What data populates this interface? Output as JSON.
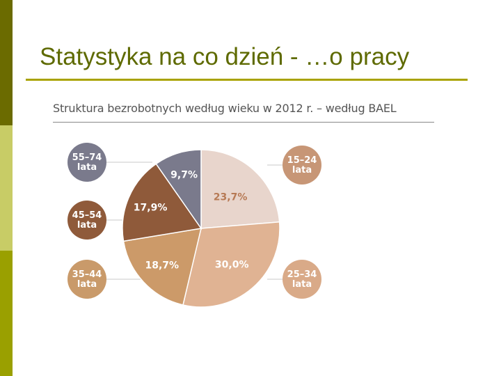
{
  "slide": {
    "title": "Statystyka na co dzień - …o pracy",
    "accent_bar_colors": [
      "#6b6b00",
      "#c8cc66",
      "#9aa000"
    ]
  },
  "chart_data": {
    "type": "pie",
    "title": "Struktura bezrobotnych według wieku w 2012 r. – według BAEL",
    "slices": [
      {
        "label": [
          "15–24",
          "lata"
        ],
        "value": 23.7,
        "value_label": "23,7%",
        "color": "#e8d5cc",
        "label_color": "#c79676",
        "text_color": "#b77a55"
      },
      {
        "label": [
          "25–34",
          "lata"
        ],
        "value": 30.0,
        "value_label": "30,0%",
        "color": "#e0b393",
        "label_color": "#d9aa88",
        "text_color": "#ffffff"
      },
      {
        "label": [
          "35–44",
          "lata"
        ],
        "value": 18.7,
        "value_label": "18,7%",
        "color": "#cc9a69",
        "label_color": "#c99a6a",
        "text_color": "#ffffff"
      },
      {
        "label": [
          "45–54",
          "lata"
        ],
        "value": 17.9,
        "value_label": "17,9%",
        "color": "#8f5a3a",
        "label_color": "#8f5a3a",
        "text_color": "#ffffff"
      },
      {
        "label": [
          "55–74",
          "lata"
        ],
        "value": 9.7,
        "value_label": "9,7%",
        "color": "#7a7a8c",
        "label_color": "#7a7a8c",
        "text_color": "#ffffff"
      }
    ]
  }
}
